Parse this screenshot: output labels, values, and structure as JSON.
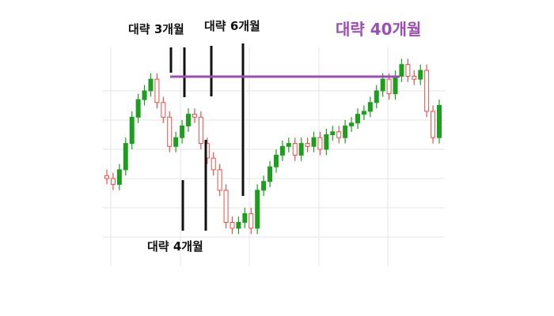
{
  "chart_data": {
    "type": "candlestick",
    "annotations": [
      "대략 3개월",
      "대략 6개월",
      "대략 40개월",
      "대략 4개월"
    ],
    "up_color": "#1e9e1e",
    "down_color": "#e8504a",
    "ylim": [
      0,
      9
    ],
    "yticks": [
      1,
      2,
      3,
      4,
      5,
      6
    ],
    "grid": true,
    "close": [
      3.0,
      2.8,
      3.3,
      4.2,
      5.1,
      5.7,
      6.0,
      6.4,
      5.6,
      5.1,
      4.1,
      4.4,
      4.8,
      5.2,
      5.1,
      4.2,
      3.7,
      3.3,
      2.6,
      1.5,
      1.3,
      1.5,
      1.8,
      1.3,
      2.6,
      2.9,
      3.4,
      3.8,
      4.1,
      4.2,
      3.8,
      4.2,
      4.1,
      4.4,
      4.0,
      4.5,
      4.6,
      4.4,
      4.8,
      4.9,
      5.2,
      5.3,
      5.6,
      6.0,
      6.4,
      5.9,
      6.5,
      6.9,
      6.5,
      6.4,
      6.7,
      5.3,
      4.4,
      5.5
    ],
    "open": [
      3.1,
      3.0,
      2.8,
      3.3,
      4.2,
      5.1,
      5.7,
      6.0,
      6.4,
      5.6,
      5.1,
      4.1,
      4.4,
      4.8,
      5.2,
      5.1,
      4.2,
      3.7,
      3.3,
      2.6,
      1.5,
      1.3,
      1.5,
      1.8,
      1.3,
      2.6,
      2.9,
      3.4,
      3.8,
      4.1,
      4.2,
      3.8,
      4.2,
      4.1,
      4.4,
      4.0,
      4.5,
      4.6,
      4.4,
      4.8,
      4.9,
      5.2,
      5.3,
      5.6,
      6.0,
      6.4,
      5.9,
      6.5,
      6.9,
      6.5,
      6.4,
      6.7,
      5.3,
      4.4
    ],
    "high": [
      3.3,
      3.2,
      3.5,
      4.4,
      5.3,
      5.9,
      6.2,
      6.6,
      6.6,
      5.8,
      5.3,
      4.6,
      5.0,
      5.4,
      5.4,
      5.3,
      4.4,
      3.9,
      3.5,
      2.8,
      1.7,
      1.7,
      2.0,
      2.0,
      2.8,
      3.1,
      3.6,
      4.0,
      4.3,
      4.4,
      4.4,
      4.4,
      4.4,
      4.6,
      4.6,
      4.7,
      4.8,
      4.8,
      5.0,
      5.1,
      5.4,
      5.5,
      5.8,
      6.2,
      6.6,
      6.6,
      6.7,
      7.1,
      7.1,
      6.7,
      6.9,
      6.9,
      5.5,
      5.7
    ],
    "low": [
      2.8,
      2.6,
      2.6,
      3.1,
      4.0,
      4.9,
      5.5,
      5.8,
      5.4,
      4.9,
      3.9,
      3.9,
      4.2,
      4.6,
      4.9,
      4.0,
      3.5,
      3.1,
      2.4,
      1.3,
      1.1,
      1.1,
      1.3,
      1.1,
      1.1,
      2.4,
      2.7,
      3.2,
      3.6,
      3.9,
      3.6,
      3.6,
      3.9,
      3.9,
      3.8,
      3.8,
      4.3,
      4.2,
      4.2,
      4.6,
      4.7,
      5.0,
      5.1,
      5.4,
      5.8,
      5.7,
      5.7,
      6.3,
      6.3,
      6.2,
      6.2,
      5.1,
      4.2,
      4.2
    ]
  }
}
